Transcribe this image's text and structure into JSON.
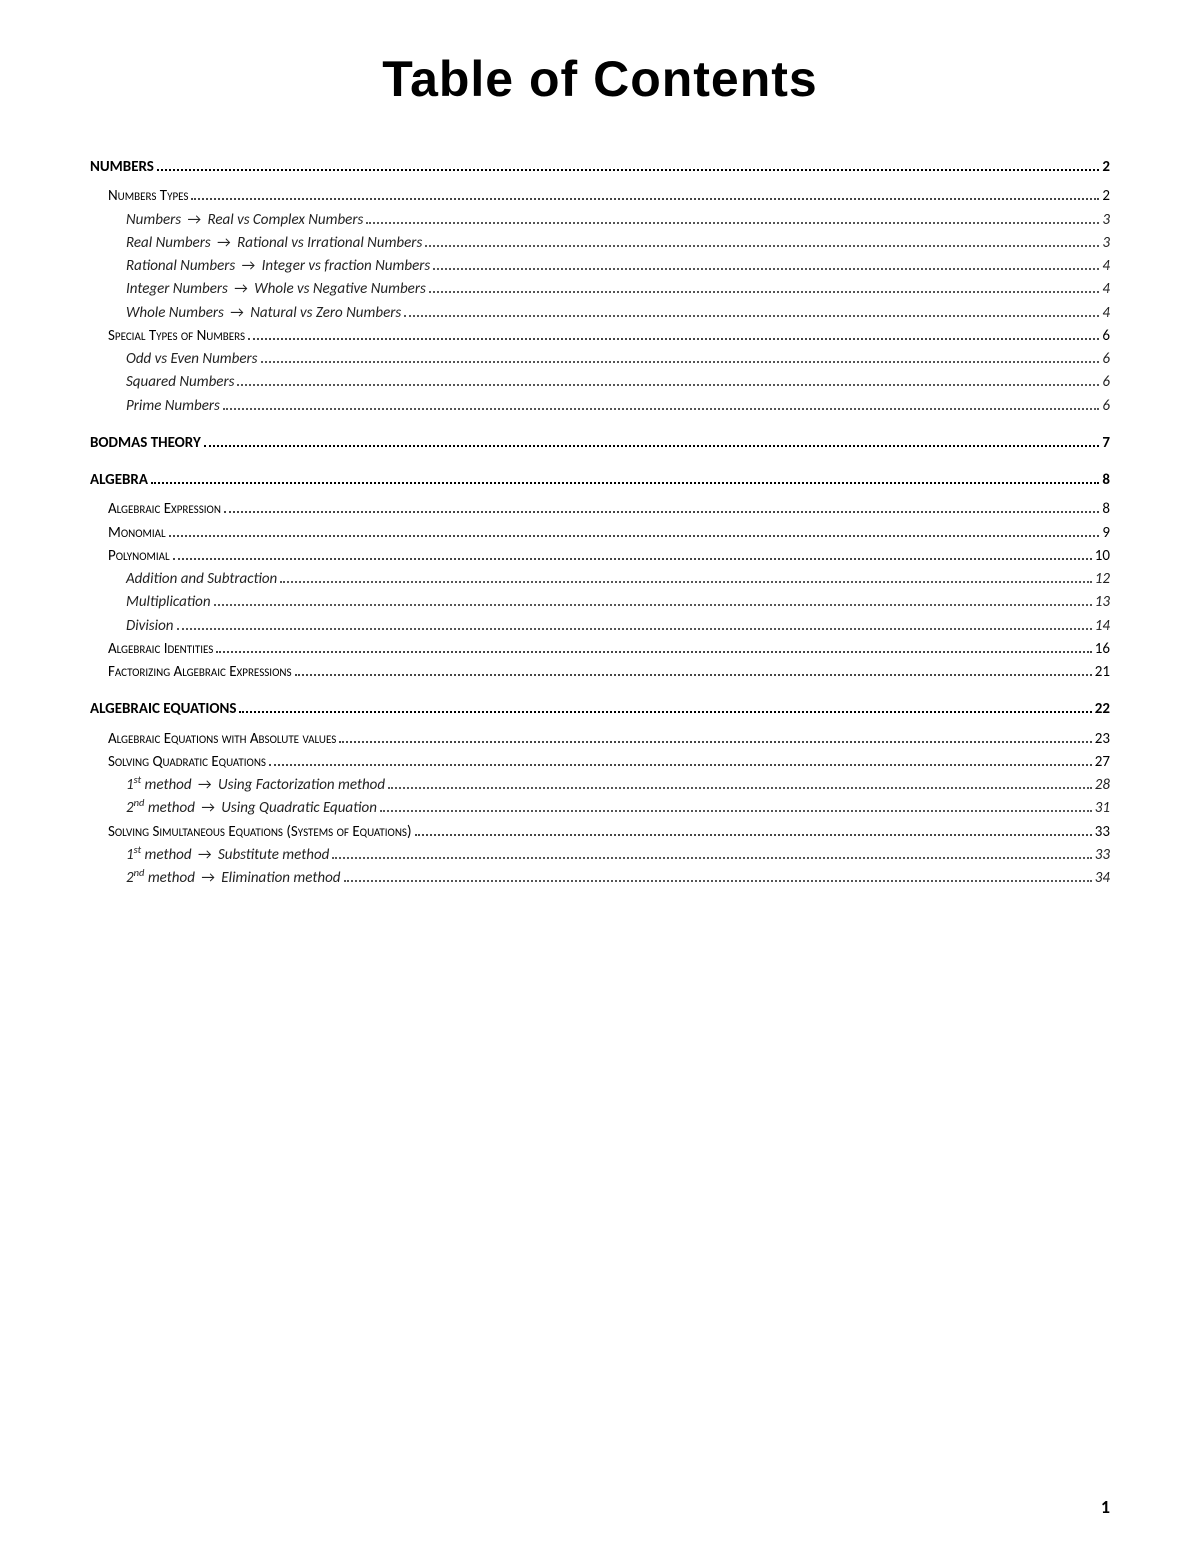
{
  "title": "Table of Contents",
  "page_number": "1",
  "style": {
    "page_bg": "#ffffff",
    "text_color": "#000000",
    "title_font": "Impact",
    "title_fontsize": 50,
    "body_font": "Calibri",
    "body_fontsize": 15,
    "leader_char": "."
  },
  "toc": [
    {
      "level": 0,
      "label": "NUMBERS",
      "page": "2"
    },
    {
      "level": 1,
      "label": "Numbers Types",
      "page": "2",
      "smallcaps": true
    },
    {
      "level": 2,
      "label": "Numbers → Real vs Complex Numbers",
      "page": "3",
      "italic": true
    },
    {
      "level": 2,
      "label": "Real Numbers → Rational vs Irrational Numbers",
      "page": "3",
      "italic": true
    },
    {
      "level": 2,
      "label": "Rational Numbers → Integer vs fraction Numbers",
      "page": "4",
      "italic": true
    },
    {
      "level": 2,
      "label": "Integer Numbers → Whole vs Negative Numbers",
      "page": "4",
      "italic": true
    },
    {
      "level": 2,
      "label": "Whole Numbers → Natural vs Zero Numbers",
      "page": "4",
      "italic": true
    },
    {
      "level": 1,
      "label": "Special Types of Numbers",
      "page": "6",
      "smallcaps": true
    },
    {
      "level": 2,
      "label": "Odd vs Even Numbers",
      "page": "6",
      "italic": true
    },
    {
      "level": 2,
      "label": "Squared Numbers",
      "page": "6",
      "italic": true
    },
    {
      "level": 2,
      "label": "Prime Numbers",
      "page": "6",
      "italic": true
    },
    {
      "level": 0,
      "label": "BODMAS THEORY",
      "page": "7"
    },
    {
      "level": 0,
      "label": "ALGEBRA",
      "page": "8"
    },
    {
      "level": 1,
      "label": "Algebraic Expression",
      "page": "8",
      "smallcaps": true
    },
    {
      "level": 1,
      "label": "Monomial",
      "page": "9",
      "smallcaps": true
    },
    {
      "level": 1,
      "label": "Polynomial",
      "page": "10",
      "smallcaps": true
    },
    {
      "level": 2,
      "label": "Addition and Subtraction",
      "page": "12",
      "italic": true
    },
    {
      "level": 2,
      "label": "Multiplication",
      "page": "13",
      "italic": true
    },
    {
      "level": 2,
      "label": "Division",
      "page": "14",
      "italic": true
    },
    {
      "level": 1,
      "label": "Algebraic Identities",
      "page": "16",
      "smallcaps": true
    },
    {
      "level": 1,
      "label": "Factorizing Algebraic Expressions",
      "page": "21",
      "smallcaps": true
    },
    {
      "level": 0,
      "label": "ALGEBRAIC EQUATIONS",
      "page": "22"
    },
    {
      "level": 1,
      "label": "Algebraic Equations with Absolute values",
      "page": "23",
      "smallcaps": true
    },
    {
      "level": 1,
      "label": "Solving Quadratic Equations",
      "page": "27",
      "smallcaps": true
    },
    {
      "level": 2,
      "label": "1<sup>st</sup> method → Using Factorization method",
      "page": "28",
      "italic": true,
      "html": true
    },
    {
      "level": 2,
      "label": "2<sup>nd</sup> method → Using Quadratic Equation",
      "page": "31",
      "italic": true,
      "html": true
    },
    {
      "level": 1,
      "label": "Solving Simultaneous Equations (Systems of Equations)",
      "page": "33",
      "smallcaps": true
    },
    {
      "level": 2,
      "label": "1<sup>st</sup> method → Substitute method",
      "page": "33",
      "italic": true,
      "html": true
    },
    {
      "level": 2,
      "label": "2<sup>nd</sup> method → Elimination method",
      "page": "34",
      "italic": true,
      "html": true
    }
  ]
}
